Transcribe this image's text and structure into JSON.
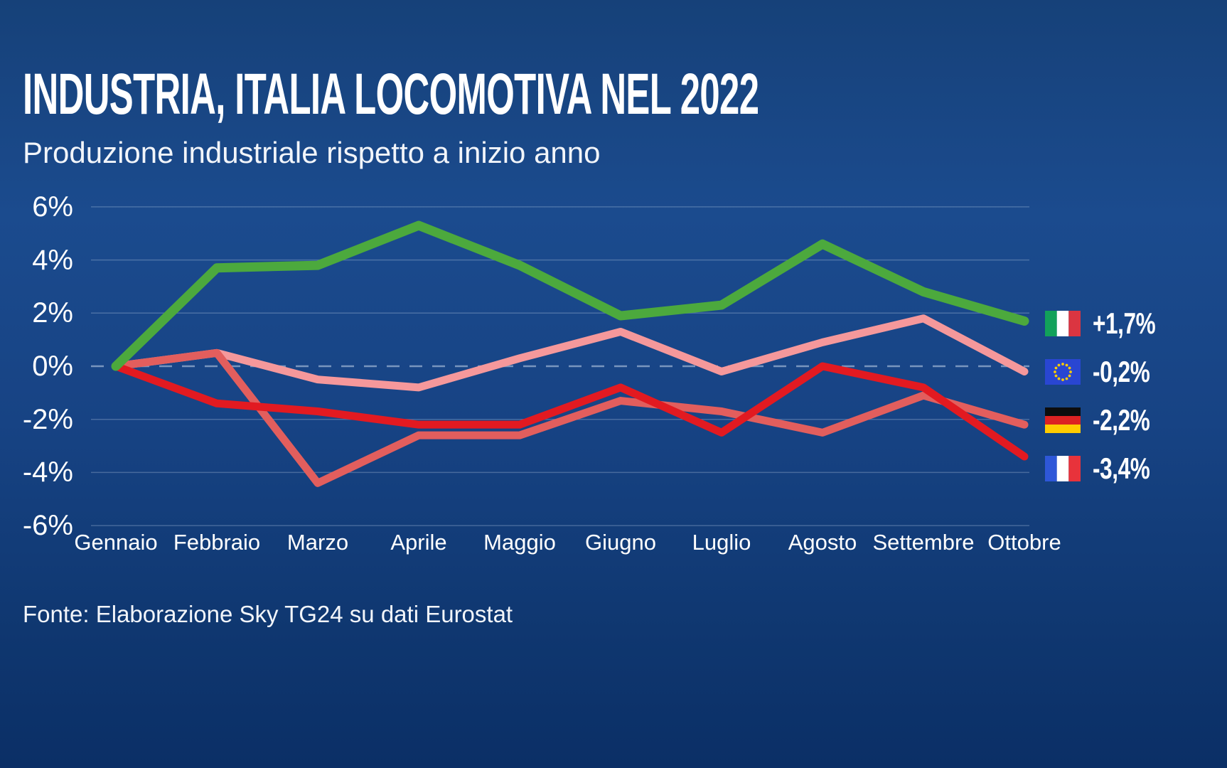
{
  "header": {
    "title": "INDUSTRIA, ITALIA LOCOMOTIVA NEL 2022",
    "subtitle": "Produzione industriale rispetto a inizio anno"
  },
  "footer": {
    "source": "Fonte: Elaborazione Sky TG24 su dati Eurostat"
  },
  "chart_data": {
    "type": "line",
    "title": "INDUSTRIA, ITALIA LOCOMOTIVA NEL 2022",
    "subtitle": "Produzione industriale rispetto a inizio anno",
    "categories": [
      "Gennaio",
      "Febbraio",
      "Marzo",
      "Aprile",
      "Maggio",
      "Giugno",
      "Luglio",
      "Agosto",
      "Settembre",
      "Ottobre"
    ],
    "unit": "%",
    "ylim": [
      -6,
      6
    ],
    "yticks": [
      6,
      4,
      2,
      0,
      -2,
      -4,
      -6
    ],
    "ytick_labels": [
      "6%",
      "4%",
      "2%",
      "0%",
      "-2%",
      "-4%",
      "-6%"
    ],
    "grid": true,
    "zero_line_dashed": true,
    "legend_position": "right",
    "series": [
      {
        "name": "Italia",
        "flag": "italy",
        "color": "#4CA93D",
        "final_label": "+1,7%",
        "final_value": 1.7,
        "values": [
          0,
          3.7,
          3.8,
          5.3,
          3.8,
          1.9,
          2.3,
          4.6,
          2.8,
          1.7
        ]
      },
      {
        "name": "Unione Europea",
        "flag": "eu",
        "color": "#F5989B",
        "final_label": "-0,2%",
        "final_value": -0.2,
        "values": [
          0,
          0.5,
          -0.5,
          -0.8,
          0.3,
          1.3,
          -0.2,
          0.9,
          1.8,
          -0.2
        ]
      },
      {
        "name": "Germania",
        "flag": "germany",
        "color": "#E25E5D",
        "final_label": "-2,2%",
        "final_value": -2.2,
        "values": [
          0,
          0.5,
          -4.4,
          -2.6,
          -2.6,
          -1.3,
          -1.7,
          -2.5,
          -1.1,
          -2.2
        ]
      },
      {
        "name": "Francia",
        "flag": "france",
        "color": "#E21A21",
        "final_label": "-3,4%",
        "final_value": -3.4,
        "values": [
          0,
          -1.4,
          -1.7,
          -2.2,
          -2.2,
          -0.8,
          -2.5,
          0.0,
          -0.8,
          -3.4
        ]
      }
    ],
    "colors": {
      "background_top": "#1b4b8e",
      "background_bottom": "#0b2f66",
      "gridline": "rgba(190,205,230,0.30)",
      "zero_line": "rgba(200,215,235,0.55)",
      "text": "#ffffff"
    },
    "flag_colors": {
      "italy": [
        "#12A15A",
        "#FFFFFF",
        "#DB3541"
      ],
      "france": [
        "#2E57D8",
        "#FFFFFF",
        "#E8333B"
      ],
      "germany": [
        "#0D0D0D",
        "#DD2222",
        "#FFCC00"
      ],
      "eu": [
        "#2946D2",
        "#FFCC00"
      ]
    }
  }
}
